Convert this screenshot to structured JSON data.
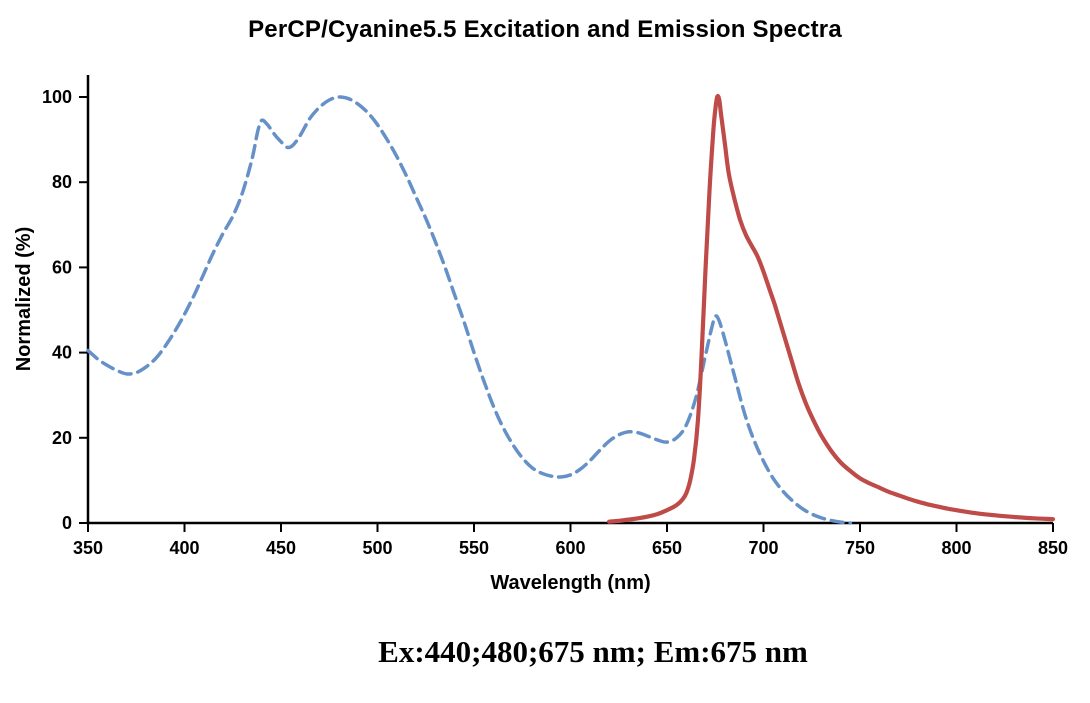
{
  "caption": "Ex:440;480;675 nm; Em:675 nm",
  "chart_data": {
    "type": "line",
    "title": "PerCP/Cyanine5.5 Excitation and Emission Spectra",
    "xlabel": "Wavelength (nm)",
    "ylabel": "Normalized (%)",
    "xlim": [
      350,
      850
    ],
    "ylim": [
      0,
      100
    ],
    "x_ticks": [
      350,
      400,
      450,
      500,
      550,
      600,
      650,
      700,
      750,
      800,
      850
    ],
    "y_ticks": [
      0,
      20,
      40,
      60,
      80,
      100
    ],
    "grid": false,
    "legend": "none",
    "axis_color": "#000000",
    "series": [
      {
        "name": "Excitation",
        "style": "dashed",
        "color": "#6591C8",
        "points": [
          [
            350,
            40.5
          ],
          [
            355,
            38.5
          ],
          [
            360,
            37
          ],
          [
            365,
            35.8
          ],
          [
            370,
            35
          ],
          [
            375,
            35.3
          ],
          [
            380,
            36.6
          ],
          [
            385,
            38.6
          ],
          [
            390,
            41.5
          ],
          [
            395,
            45
          ],
          [
            400,
            49
          ],
          [
            405,
            53.5
          ],
          [
            410,
            58.5
          ],
          [
            415,
            63.5
          ],
          [
            420,
            68
          ],
          [
            425,
            72
          ],
          [
            430,
            77.5
          ],
          [
            435,
            85.5
          ],
          [
            438,
            92
          ],
          [
            440,
            94.5
          ],
          [
            443,
            93.5
          ],
          [
            447,
            91
          ],
          [
            450,
            89.5
          ],
          [
            453,
            88.2
          ],
          [
            456,
            88.6
          ],
          [
            460,
            91
          ],
          [
            465,
            95
          ],
          [
            470,
            97.6
          ],
          [
            475,
            99.3
          ],
          [
            480,
            100
          ],
          [
            485,
            99.6
          ],
          [
            490,
            98.3
          ],
          [
            495,
            96.3
          ],
          [
            500,
            93.5
          ],
          [
            505,
            90
          ],
          [
            510,
            86
          ],
          [
            515,
            81.5
          ],
          [
            520,
            76.5
          ],
          [
            525,
            71.5
          ],
          [
            530,
            66
          ],
          [
            535,
            60
          ],
          [
            540,
            53.5
          ],
          [
            545,
            47
          ],
          [
            550,
            40
          ],
          [
            555,
            33.5
          ],
          [
            560,
            27.5
          ],
          [
            565,
            22.5
          ],
          [
            570,
            18.5
          ],
          [
            575,
            15.3
          ],
          [
            580,
            13
          ],
          [
            585,
            11.7
          ],
          [
            590,
            11
          ],
          [
            595,
            10.8
          ],
          [
            600,
            11.3
          ],
          [
            605,
            12.6
          ],
          [
            610,
            14.6
          ],
          [
            615,
            17
          ],
          [
            620,
            19.2
          ],
          [
            625,
            20.7
          ],
          [
            630,
            21.4
          ],
          [
            635,
            21.2
          ],
          [
            640,
            20.4
          ],
          [
            645,
            19.5
          ],
          [
            650,
            19
          ],
          [
            655,
            20
          ],
          [
            660,
            23
          ],
          [
            665,
            29.5
          ],
          [
            670,
            39.5
          ],
          [
            673,
            45.5
          ],
          [
            675,
            48.5
          ],
          [
            677,
            47.5
          ],
          [
            680,
            43
          ],
          [
            685,
            34.5
          ],
          [
            690,
            26
          ],
          [
            695,
            19.5
          ],
          [
            700,
            14.5
          ],
          [
            705,
            10.5
          ],
          [
            710,
            7.5
          ],
          [
            715,
            5.2
          ],
          [
            720,
            3.4
          ],
          [
            725,
            2.1
          ],
          [
            730,
            1.2
          ],
          [
            735,
            0.6
          ],
          [
            740,
            0.2
          ],
          [
            745,
            0
          ]
        ]
      },
      {
        "name": "Emission",
        "style": "solid",
        "color": "#BF4B48",
        "points": [
          [
            620,
            0.3
          ],
          [
            625,
            0.5
          ],
          [
            630,
            0.8
          ],
          [
            635,
            1.1
          ],
          [
            640,
            1.5
          ],
          [
            645,
            2.1
          ],
          [
            650,
            3
          ],
          [
            655,
            4.2
          ],
          [
            658,
            5.5
          ],
          [
            660,
            7
          ],
          [
            662,
            10
          ],
          [
            664,
            15
          ],
          [
            666,
            24
          ],
          [
            668,
            40
          ],
          [
            670,
            60
          ],
          [
            672,
            78
          ],
          [
            674,
            92
          ],
          [
            675,
            97
          ],
          [
            676,
            100
          ],
          [
            677,
            99.5
          ],
          [
            678,
            96
          ],
          [
            680,
            89
          ],
          [
            682,
            82
          ],
          [
            685,
            76
          ],
          [
            688,
            71
          ],
          [
            691,
            67.5
          ],
          [
            694,
            65
          ],
          [
            697,
            62.5
          ],
          [
            700,
            59
          ],
          [
            703,
            55
          ],
          [
            706,
            51
          ],
          [
            710,
            45
          ],
          [
            714,
            39
          ],
          [
            718,
            33
          ],
          [
            722,
            28
          ],
          [
            726,
            24
          ],
          [
            730,
            20.5
          ],
          [
            735,
            17
          ],
          [
            740,
            14.2
          ],
          [
            745,
            12.2
          ],
          [
            750,
            10.5
          ],
          [
            755,
            9.3
          ],
          [
            760,
            8.3
          ],
          [
            765,
            7.3
          ],
          [
            770,
            6.5
          ],
          [
            775,
            5.7
          ],
          [
            780,
            5
          ],
          [
            785,
            4.4
          ],
          [
            790,
            3.9
          ],
          [
            795,
            3.4
          ],
          [
            800,
            3
          ],
          [
            810,
            2.3
          ],
          [
            820,
            1.8
          ],
          [
            830,
            1.4
          ],
          [
            840,
            1.1
          ],
          [
            850,
            0.9
          ]
        ]
      }
    ]
  }
}
